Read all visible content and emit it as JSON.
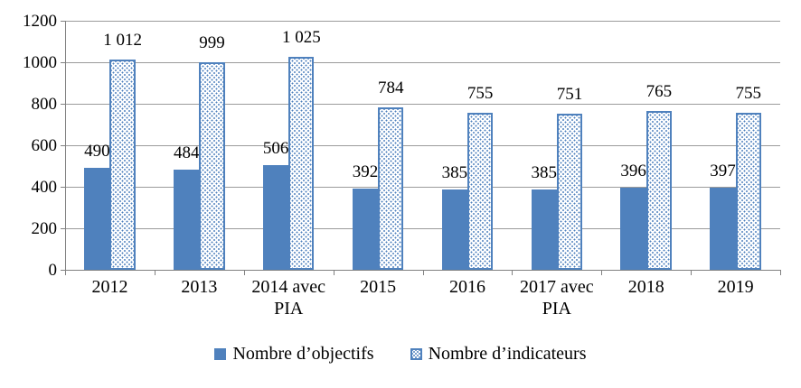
{
  "chart_data": {
    "type": "bar",
    "title": "",
    "xlabel": "",
    "ylabel": "",
    "categories": [
      "2012",
      "2013",
      "2014 avec PIA",
      "2015",
      "2016",
      "2017 avec PIA",
      "2018",
      "2019"
    ],
    "category_lines": [
      [
        "2012"
      ],
      [
        "2013"
      ],
      [
        "2014 avec",
        "PIA"
      ],
      [
        "2015"
      ],
      [
        "2016"
      ],
      [
        "2017 avec",
        "PIA"
      ],
      [
        "2018"
      ],
      [
        "2019"
      ]
    ],
    "series": [
      {
        "name": "Nombre d’objectifs",
        "pattern": "solid",
        "color": "#4F81BD",
        "values": [
          490,
          484,
          506,
          392,
          385,
          385,
          396,
          397
        ],
        "labels": [
          "490",
          "484",
          "506",
          "392",
          "385",
          "385",
          "396",
          "397"
        ]
      },
      {
        "name": "Nombre d’indicateurs",
        "pattern": "dotted",
        "color": "#4F81BD",
        "values": [
          1012,
          999,
          1025,
          784,
          755,
          751,
          765,
          755
        ],
        "labels": [
          "1 012",
          "999",
          "1 025",
          "784",
          "755",
          "751",
          "765",
          "755"
        ]
      }
    ],
    "ylim": [
      0,
      1200
    ],
    "ytick_step": 200,
    "ytick_labels": [
      "0",
      "200",
      "400",
      "600",
      "800",
      "1000",
      "1200"
    ],
    "grid": "horizontal-only",
    "legend_position": "bottom-center",
    "colors": {
      "bar_blue": "#4F81BD",
      "gridline": "#9B9B9B",
      "axis": "#808080",
      "text": "#000000",
      "background": "#FFFFFF"
    }
  }
}
